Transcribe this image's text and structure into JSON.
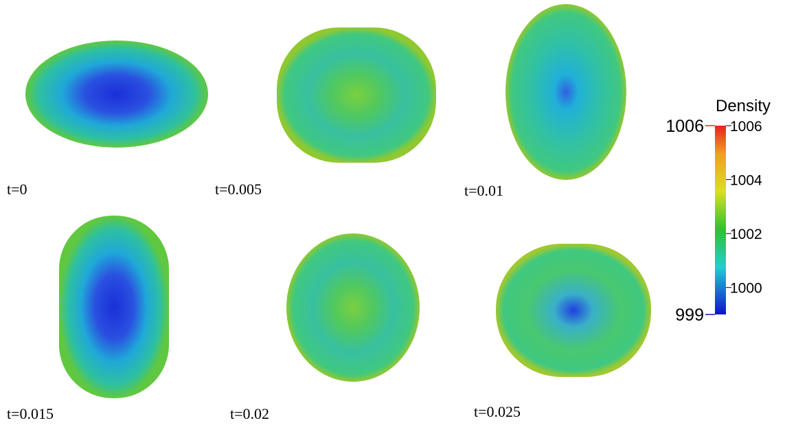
{
  "panels": [
    {
      "label": "t=0"
    },
    {
      "label": "t=0.005"
    },
    {
      "label": "t=0.01"
    },
    {
      "label": "t=0.015"
    },
    {
      "label": "t=0.02"
    },
    {
      "label": "t=0.025"
    }
  ],
  "colorbar": {
    "title": "Density",
    "range": [
      999,
      1006
    ],
    "ticks": [
      1000,
      1002,
      1004,
      1006
    ]
  }
}
